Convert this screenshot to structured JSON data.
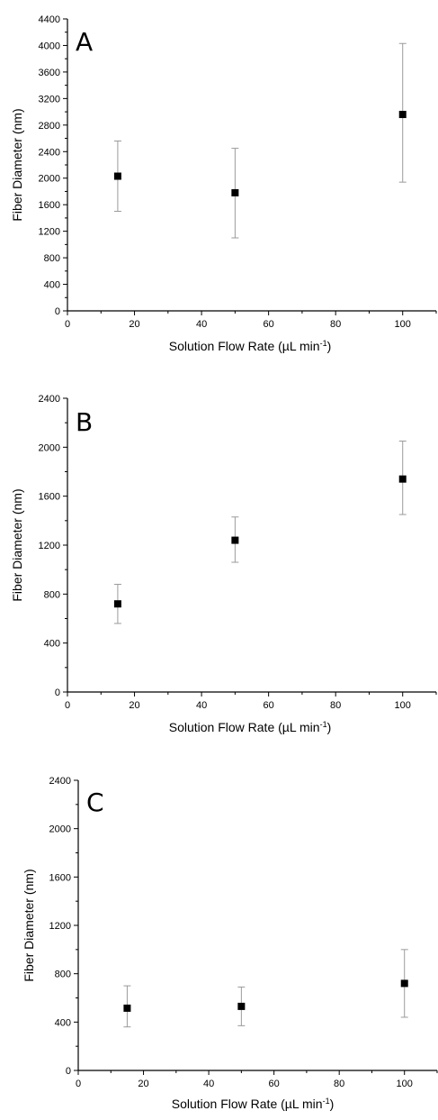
{
  "chart_data": [
    {
      "type": "scatter",
      "panel_label": "A",
      "xlabel": "Solution Flow Rate (µL min",
      "xlabel_sup": "-1",
      "xlabel_end": ")",
      "ylabel": "Fiber Diameter (nm)",
      "xlim": [
        0,
        110
      ],
      "ylim": [
        0,
        4400
      ],
      "x_ticks": [
        0,
        20,
        40,
        60,
        80,
        100
      ],
      "y_ticks": [
        0,
        400,
        800,
        1200,
        1600,
        2000,
        2400,
        2800,
        3200,
        3600,
        4000,
        4400
      ],
      "points": [
        {
          "x": 15,
          "y": 2030,
          "err_low": 1500,
          "err_high": 2560
        },
        {
          "x": 50,
          "y": 1780,
          "err_low": 1100,
          "err_high": 2450
        },
        {
          "x": 100,
          "y": 2960,
          "err_low": 1940,
          "err_high": 4030
        }
      ]
    },
    {
      "type": "scatter",
      "panel_label": "B",
      "xlabel": "Solution Flow Rate (µL min",
      "xlabel_sup": "-1",
      "xlabel_end": ")",
      "ylabel": "Fiber Diameter (nm)",
      "xlim": [
        0,
        110
      ],
      "ylim": [
        0,
        2400
      ],
      "x_ticks": [
        0,
        20,
        40,
        60,
        80,
        100
      ],
      "y_ticks": [
        0,
        400,
        800,
        1200,
        1600,
        2000,
        2400
      ],
      "points": [
        {
          "x": 15,
          "y": 720,
          "err_low": 560,
          "err_high": 880
        },
        {
          "x": 50,
          "y": 1240,
          "err_low": 1060,
          "err_high": 1430
        },
        {
          "x": 100,
          "y": 1740,
          "err_low": 1450,
          "err_high": 2050
        }
      ]
    },
    {
      "type": "scatter",
      "panel_label": "C",
      "xlabel": "Solution Flow Rate (µL min",
      "xlabel_sup": "-1",
      "xlabel_end": ")",
      "ylabel": "Fiber Diameter (nm)",
      "xlim": [
        0,
        110
      ],
      "ylim": [
        0,
        2400
      ],
      "x_ticks": [
        0,
        20,
        40,
        60,
        80,
        100
      ],
      "y_ticks": [
        0,
        400,
        800,
        1200,
        1600,
        2000,
        2400
      ],
      "points": [
        {
          "x": 15,
          "y": 515,
          "err_low": 360,
          "err_high": 700
        },
        {
          "x": 50,
          "y": 530,
          "err_low": 370,
          "err_high": 690
        },
        {
          "x": 100,
          "y": 720,
          "err_low": 440,
          "err_high": 1000
        }
      ]
    }
  ]
}
